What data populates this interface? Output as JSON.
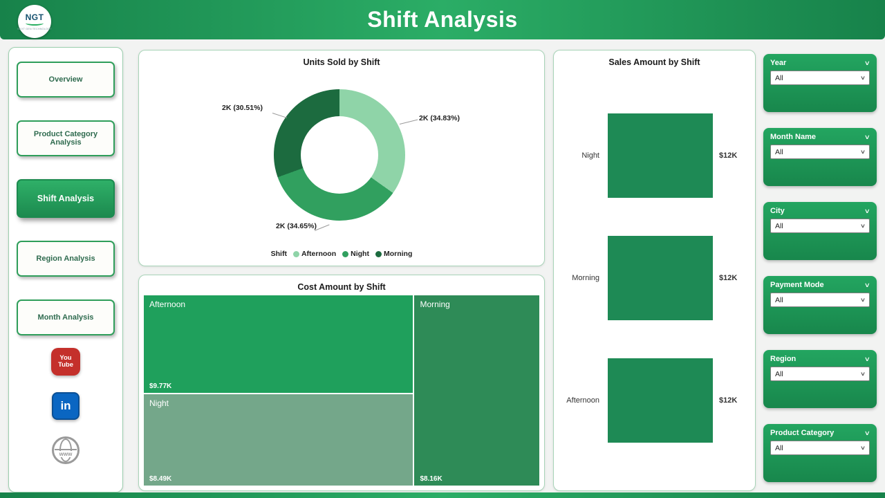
{
  "header": {
    "title": "Shift Analysis",
    "logo_text": "NGT",
    "logo_tagline": "NEXT GEN TECHNOLOGY"
  },
  "sidebar": {
    "items": [
      {
        "label": "Overview",
        "active": false
      },
      {
        "label": "Product Category Analysis",
        "active": false
      },
      {
        "label": "Shift Analysis",
        "active": true
      },
      {
        "label": "Region Analysis",
        "active": false
      },
      {
        "label": "Month Analysis",
        "active": false
      }
    ],
    "social": {
      "youtube": {
        "line1": "You",
        "line2": "Tube"
      },
      "linkedin": {
        "text": "in"
      },
      "website": {
        "text": "www"
      }
    }
  },
  "chart_data": [
    {
      "type": "donut",
      "title": "Units Sold by Shift",
      "legend_title": "Shift",
      "legend_position": "bottom",
      "series": [
        {
          "name": "Afternoon",
          "value": 2000,
          "pct": 34.83,
          "label": "2K (34.83%)",
          "color": "#8FD4A8"
        },
        {
          "name": "Night",
          "value": 2000,
          "pct": 34.65,
          "label": "2K (34.65%)",
          "color": "#31A05F"
        },
        {
          "name": "Morning",
          "value": 2000,
          "pct": 30.51,
          "label": "2K (30.51%)",
          "color": "#1C6B3F"
        }
      ]
    },
    {
      "type": "treemap",
      "title": "Cost Amount by Shift",
      "nodes": [
        {
          "name": "Afternoon",
          "value": 9770,
          "value_label": "$9.77K",
          "color": "#1FA05C"
        },
        {
          "name": "Night",
          "value": 8490,
          "value_label": "$8.49K",
          "color": "#74A78A"
        },
        {
          "name": "Morning",
          "value": 8160,
          "value_label": "$8.16K",
          "color": "#2E8B57"
        }
      ]
    },
    {
      "type": "bar",
      "title": "Sales Amount by Shift",
      "orientation": "horizontal",
      "categories": [
        "Night",
        "Morning",
        "Afternoon"
      ],
      "values": [
        12000,
        12000,
        12000
      ],
      "value_labels": [
        "$12K",
        "$12K",
        "$12K"
      ],
      "bar_color": "#1E8A55",
      "xlabel": "",
      "ylabel": ""
    }
  ],
  "filters": [
    {
      "label": "Year",
      "value": "All"
    },
    {
      "label": "Month Name",
      "value": "All"
    },
    {
      "label": "City",
      "value": "All"
    },
    {
      "label": "Payment Mode",
      "value": "All"
    },
    {
      "label": "Region",
      "value": "All"
    },
    {
      "label": "Product Category",
      "value": "All"
    }
  ],
  "colors": {
    "header_green_dark": "#17824A",
    "header_green_light": "#2BAD66",
    "accent_green": "#1F9D58",
    "panel_border": "#A8D4B8"
  }
}
